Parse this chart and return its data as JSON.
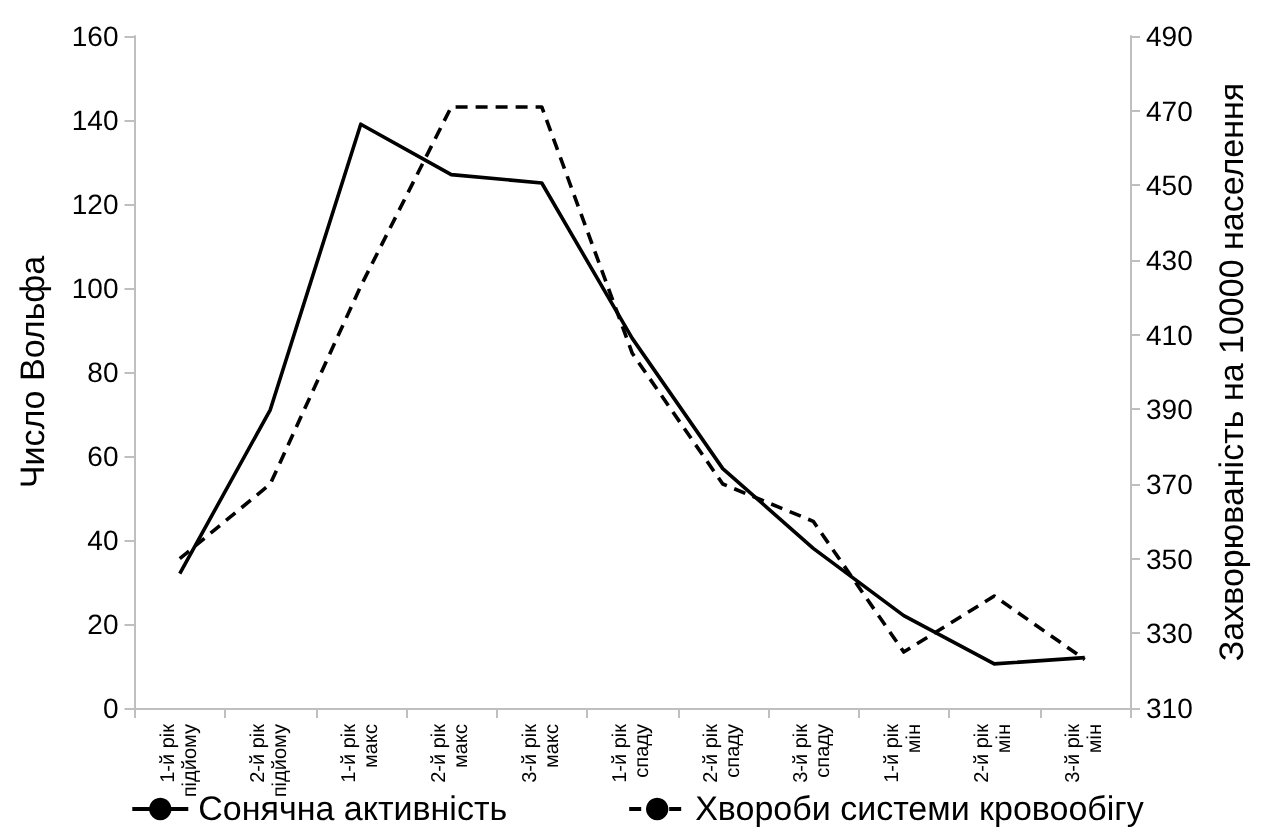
{
  "chart_data": {
    "type": "line",
    "xlabel": null,
    "categories": [
      "1-й рік підйому",
      "2-й рік підйому",
      "1-й рік макс",
      "2-й рік макс",
      "3-й рік макс",
      "1-й рік спаду",
      "2-й рік спаду",
      "3-й рік спаду",
      "1-й рік мін",
      "2-й рік мін",
      "3-й рік мін"
    ],
    "series": [
      {
        "name": "Сонячна активність",
        "color": "#000000",
        "line_style": "solid",
        "values": [
          32,
          71,
          139,
          127,
          125,
          88,
          57,
          38,
          22,
          10.5,
          12
        ]
      },
      {
        "name": "Хвороби системи кровообігу",
        "color": "#000000",
        "line_style": "dashed",
        "axis": "y2",
        "values": [
          350,
          370,
          423,
          471,
          471,
          405,
          370,
          360,
          325,
          340,
          323
        ]
      }
    ],
    "ylabel": "Число Вольфа",
    "y2label": "Захворюваність на 10000 населення",
    "ylim": [
      0,
      160
    ],
    "yticks": [
      0,
      20,
      40,
      60,
      80,
      100,
      120,
      140,
      160
    ],
    "y2lim": [
      310,
      490
    ],
    "y2ticks": [
      310,
      330,
      350,
      370,
      390,
      410,
      430,
      450,
      470,
      490
    ],
    "grid": false,
    "legend": "bottom",
    "marker": "none"
  }
}
